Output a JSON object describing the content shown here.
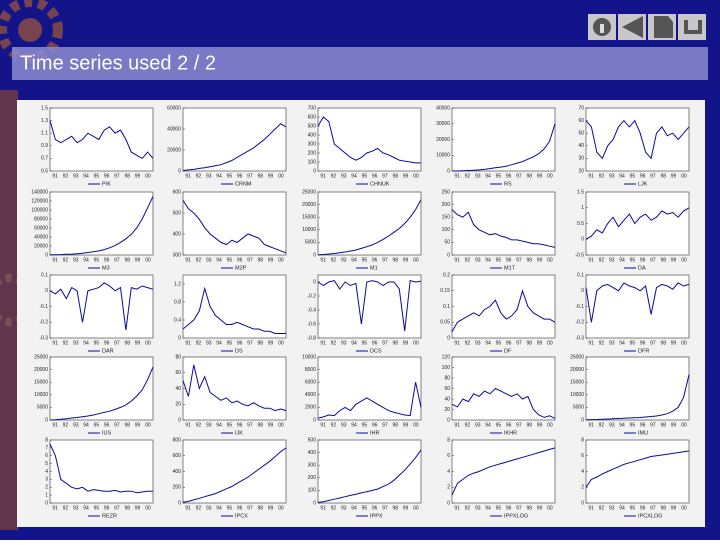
{
  "title": "Time series used 2 / 2",
  "chart_data": [
    {
      "type": "line",
      "legend": "PIK",
      "color": "#0a0aa0",
      "ylim": [
        0.5,
        1.5
      ],
      "yticks": [
        0.5,
        0.7,
        0.9,
        1.1,
        1.3,
        1.5
      ],
      "xticks": [
        "91",
        "92",
        "93",
        "94",
        "95",
        "96",
        "97",
        "98",
        "99",
        "00"
      ],
      "values": [
        1.3,
        1.0,
        0.95,
        1.0,
        1.05,
        0.95,
        1.0,
        1.1,
        1.05,
        1.0,
        1.15,
        1.2,
        1.1,
        1.15,
        1.0,
        0.8,
        0.75,
        0.7,
        0.8,
        0.7
      ]
    },
    {
      "type": "line",
      "legend": "CRNM",
      "color": "#0a0aa0",
      "ylim": [
        0,
        60000
      ],
      "yticks": [
        0,
        20000,
        40000,
        60000
      ],
      "xticks": [
        "91",
        "92",
        "93",
        "94",
        "95",
        "96",
        "97",
        "98",
        "99",
        "00"
      ],
      "values": [
        500,
        1000,
        1500,
        2500,
        3000,
        4000,
        5000,
        6000,
        8000,
        10000,
        13000,
        16000,
        19000,
        22000,
        26000,
        30000,
        35000,
        40000,
        45000,
        42000
      ]
    },
    {
      "type": "line",
      "legend": "CHNUK",
      "color": "#0a0aa0",
      "ylim": [
        0,
        700
      ],
      "yticks": [
        0,
        100,
        200,
        300,
        400,
        500,
        600,
        700
      ],
      "xticks": [
        "91",
        "92",
        "93",
        "94",
        "95",
        "96",
        "97",
        "98",
        "99",
        "00"
      ],
      "values": [
        500,
        600,
        550,
        300,
        250,
        200,
        150,
        120,
        150,
        200,
        220,
        250,
        200,
        180,
        150,
        120,
        110,
        100,
        90,
        90
      ]
    },
    {
      "type": "line",
      "legend": "RS",
      "color": "#0a0aa0",
      "ylim": [
        0,
        40000
      ],
      "yticks": [
        0,
        10000,
        20000,
        30000,
        40000
      ],
      "xticks": [
        "91",
        "92",
        "93",
        "94",
        "95",
        "96",
        "97",
        "98",
        "99",
        "00"
      ],
      "values": [
        0,
        0,
        100,
        300,
        500,
        700,
        1000,
        1500,
        2000,
        2500,
        3000,
        4000,
        5000,
        6000,
        7500,
        9000,
        11000,
        14000,
        19000,
        30000
      ]
    },
    {
      "type": "line",
      "legend": "LJK",
      "color": "#0a0aa0",
      "ylim": [
        20,
        70
      ],
      "yticks": [
        20,
        30,
        40,
        50,
        60,
        70
      ],
      "xticks": [
        "91",
        "92",
        "93",
        "94",
        "95",
        "96",
        "97",
        "98",
        "99",
        "00"
      ],
      "values": [
        60,
        55,
        35,
        30,
        40,
        45,
        55,
        60,
        55,
        60,
        50,
        35,
        30,
        50,
        55,
        48,
        50,
        45,
        50,
        55
      ]
    },
    {
      "type": "line",
      "legend": "M3",
      "color": "#0a0aa0",
      "ylim": [
        0,
        140000
      ],
      "yticks": [
        0,
        20000,
        40000,
        60000,
        80000,
        100000,
        120000,
        140000
      ],
      "xticks": [
        "91",
        "92",
        "93",
        "94",
        "95",
        "96",
        "97",
        "98",
        "99",
        "00"
      ],
      "values": [
        500,
        700,
        1000,
        1500,
        2000,
        3000,
        4000,
        5500,
        7000,
        9000,
        12000,
        16000,
        21000,
        28000,
        36000,
        46000,
        60000,
        80000,
        105000,
        130000
      ]
    },
    {
      "type": "line",
      "legend": "M2P",
      "color": "#0a0aa0",
      "ylim": [
        300,
        600
      ],
      "yticks": [
        300,
        400,
        500,
        600
      ],
      "xticks": [
        "91",
        "92",
        "93",
        "94",
        "95",
        "96",
        "97",
        "98",
        "99",
        "00"
      ],
      "values": [
        560,
        520,
        500,
        470,
        430,
        400,
        380,
        360,
        350,
        370,
        360,
        380,
        400,
        390,
        380,
        350,
        340,
        330,
        320,
        310
      ]
    },
    {
      "type": "line",
      "legend": "M1",
      "color": "#0a0aa0",
      "ylim": [
        0,
        25000
      ],
      "yticks": [
        0,
        5000,
        10000,
        15000,
        20000,
        25000
      ],
      "xticks": [
        "91",
        "92",
        "93",
        "94",
        "95",
        "96",
        "97",
        "98",
        "99",
        "00"
      ],
      "values": [
        100,
        200,
        400,
        600,
        900,
        1200,
        1600,
        2000,
        2600,
        3300,
        4000,
        5000,
        6200,
        7500,
        9000,
        10500,
        12500,
        15000,
        18000,
        22000
      ]
    },
    {
      "type": "line",
      "legend": "M1T",
      "color": "#0a0aa0",
      "ylim": [
        0,
        250
      ],
      "yticks": [
        0,
        50,
        100,
        150,
        200,
        250
      ],
      "xticks": [
        "91",
        "92",
        "93",
        "94",
        "95",
        "96",
        "97",
        "98",
        "99",
        "00"
      ],
      "values": [
        180,
        160,
        150,
        170,
        120,
        100,
        90,
        80,
        85,
        75,
        70,
        60,
        60,
        55,
        50,
        45,
        45,
        40,
        35,
        30
      ]
    },
    {
      "type": "line",
      "legend": "DA",
      "color": "#0a0aa0",
      "ylim": [
        -0.5,
        1.5
      ],
      "yticks": [
        -0.5,
        0,
        0.5,
        1,
        1.5
      ],
      "xticks": [
        "91",
        "92",
        "93",
        "94",
        "95",
        "96",
        "97",
        "98",
        "99",
        "00"
      ],
      "values": [
        0.0,
        0.1,
        0.3,
        0.2,
        0.5,
        0.7,
        0.4,
        0.6,
        0.8,
        0.5,
        0.7,
        0.8,
        0.6,
        0.7,
        0.9,
        0.8,
        0.85,
        0.7,
        0.9,
        1.0
      ]
    },
    {
      "type": "line",
      "legend": "DAR",
      "color": "#0a0aa0",
      "ylim": [
        -0.3,
        0.1
      ],
      "yticks": [
        -0.3,
        -0.2,
        -0.1,
        0,
        0.1
      ],
      "xticks": [
        "91",
        "92",
        "93",
        "94",
        "95",
        "96",
        "97",
        "98",
        "99",
        "00"
      ],
      "values": [
        0,
        -0.02,
        0.01,
        -0.05,
        0.02,
        0,
        -0.2,
        0,
        0.01,
        0.02,
        0.05,
        0.03,
        0,
        0.02,
        -0.25,
        0.02,
        0.01,
        0.03,
        0.02,
        0.01
      ]
    },
    {
      "type": "line",
      "legend": "DS",
      "color": "#0a0aa0",
      "ylim": [
        0,
        1.4
      ],
      "yticks": [
        0,
        0.4,
        0.8,
        1.2
      ],
      "xticks": [
        "91",
        "92",
        "93",
        "94",
        "95",
        "96",
        "97",
        "98",
        "99",
        "00"
      ],
      "values": [
        0.2,
        0.3,
        0.4,
        0.6,
        1.1,
        0.7,
        0.5,
        0.4,
        0.3,
        0.3,
        0.35,
        0.3,
        0.25,
        0.2,
        0.2,
        0.15,
        0.15,
        0.1,
        0.1,
        0.1
      ]
    },
    {
      "type": "line",
      "legend": "DCS",
      "color": "#0a0aa0",
      "ylim": [
        -0.8,
        0.1
      ],
      "yticks": [
        -0.8,
        -0.6,
        -0.4,
        -0.2,
        0
      ],
      "xticks": [
        "91",
        "92",
        "93",
        "94",
        "95",
        "96",
        "97",
        "98",
        "99",
        "00"
      ],
      "values": [
        0,
        -0.05,
        0,
        0.02,
        -0.1,
        0,
        -0.05,
        -0.02,
        -0.6,
        0,
        0.02,
        0,
        -0.05,
        0,
        0,
        -0.1,
        -0.7,
        0.02,
        0,
        0.01
      ]
    },
    {
      "type": "line",
      "legend": "DF",
      "color": "#0a0aa0",
      "ylim": [
        0,
        0.2
      ],
      "yticks": [
        0,
        0.05,
        0.1,
        0.15,
        0.2
      ],
      "xticks": [
        "91",
        "92",
        "93",
        "94",
        "95",
        "96",
        "97",
        "98",
        "99",
        "00"
      ],
      "values": [
        0.02,
        0.05,
        0.06,
        0.07,
        0.08,
        0.07,
        0.09,
        0.1,
        0.12,
        0.08,
        0.06,
        0.07,
        0.09,
        0.15,
        0.1,
        0.08,
        0.07,
        0.06,
        0.06,
        0.05
      ]
    },
    {
      "type": "line",
      "legend": "DFR",
      "color": "#0a0aa0",
      "ylim": [
        -0.3,
        0.1
      ],
      "yticks": [
        -0.3,
        -0.2,
        -0.1,
        0,
        0.1
      ],
      "xticks": [
        "91",
        "92",
        "93",
        "94",
        "95",
        "96",
        "97",
        "98",
        "99",
        "00"
      ],
      "values": [
        0.02,
        -0.2,
        0,
        0.03,
        0.04,
        0.02,
        0,
        0.05,
        0.03,
        0.02,
        0,
        0.03,
        -0.15,
        0.02,
        0.04,
        0.03,
        0.01,
        0.05,
        0.03,
        0.04
      ]
    },
    {
      "type": "line",
      "legend": "IUS",
      "color": "#0a0aa0",
      "ylim": [
        0,
        25000
      ],
      "yticks": [
        0,
        5000,
        10000,
        15000,
        20000,
        25000
      ],
      "xticks": [
        "91",
        "92",
        "93",
        "94",
        "95",
        "96",
        "97",
        "98",
        "99",
        "00"
      ],
      "values": [
        0,
        100,
        300,
        500,
        800,
        1000,
        1300,
        1600,
        2000,
        2500,
        3000,
        3500,
        4200,
        5000,
        6000,
        7500,
        9500,
        12000,
        16000,
        21000
      ]
    },
    {
      "type": "line",
      "legend": "IJK",
      "color": "#0a0aa0",
      "ylim": [
        0,
        80
      ],
      "yticks": [
        0,
        20,
        40,
        60,
        80
      ],
      "xticks": [
        "91",
        "92",
        "93",
        "94",
        "95",
        "96",
        "97",
        "98",
        "99",
        "00"
      ],
      "values": [
        50,
        30,
        70,
        40,
        55,
        35,
        30,
        25,
        28,
        22,
        24,
        20,
        18,
        22,
        18,
        15,
        15,
        12,
        14,
        12
      ]
    },
    {
      "type": "line",
      "legend": "IHR",
      "color": "#0a0aa0",
      "ylim": [
        0,
        10000
      ],
      "yticks": [
        0,
        2000,
        4000,
        6000,
        8000,
        10000
      ],
      "xticks": [
        "91",
        "92",
        "93",
        "94",
        "95",
        "96",
        "97",
        "98",
        "99",
        "00"
      ],
      "values": [
        300,
        500,
        800,
        700,
        1500,
        2000,
        1500,
        2500,
        3000,
        3500,
        3000,
        2500,
        2000,
        1500,
        1200,
        1000,
        800,
        700,
        6000,
        2000
      ]
    },
    {
      "type": "line",
      "legend": "IKHR",
      "color": "#0a0aa0",
      "ylim": [
        0,
        120
      ],
      "yticks": [
        0,
        20,
        40,
        60,
        80,
        100,
        120
      ],
      "xticks": [
        "91",
        "92",
        "93",
        "94",
        "95",
        "96",
        "97",
        "98",
        "99",
        "00"
      ],
      "values": [
        30,
        25,
        40,
        35,
        50,
        45,
        55,
        50,
        60,
        55,
        50,
        45,
        50,
        40,
        45,
        20,
        10,
        5,
        8,
        3
      ]
    },
    {
      "type": "line",
      "legend": "IMU",
      "color": "#0a0aa0",
      "ylim": [
        0,
        25000
      ],
      "yticks": [
        0,
        5000,
        10000,
        15000,
        20000,
        25000
      ],
      "xticks": [
        "91",
        "92",
        "93",
        "94",
        "95",
        "96",
        "97",
        "98",
        "99",
        "00"
      ],
      "values": [
        100,
        150,
        200,
        300,
        400,
        500,
        600,
        700,
        800,
        900,
        1000,
        1200,
        1400,
        1600,
        2000,
        2500,
        3500,
        5000,
        9000,
        18000
      ]
    },
    {
      "type": "line",
      "legend": "REZR",
      "color": "#0a0aa0",
      "ylim": [
        0,
        8
      ],
      "yticks": [
        0,
        1,
        2,
        3,
        4,
        5,
        6,
        7,
        8
      ],
      "xticks": [
        "91",
        "92",
        "93",
        "94",
        "95",
        "96",
        "97",
        "98",
        "99",
        "00"
      ],
      "values": [
        7.5,
        6,
        3,
        2.5,
        2,
        1.8,
        2,
        1.5,
        1.7,
        1.6,
        1.5,
        1.5,
        1.6,
        1.4,
        1.5,
        1.5,
        1.3,
        1.4,
        1.5,
        1.5
      ]
    },
    {
      "type": "line",
      "legend": "IPCX",
      "color": "#0a0aa0",
      "ylim": [
        0,
        800
      ],
      "yticks": [
        0,
        200,
        400,
        600,
        800
      ],
      "xticks": [
        "91",
        "92",
        "93",
        "94",
        "95",
        "96",
        "97",
        "98",
        "99",
        "00"
      ],
      "values": [
        10,
        20,
        40,
        60,
        80,
        100,
        120,
        150,
        180,
        210,
        250,
        290,
        330,
        380,
        430,
        480,
        530,
        590,
        650,
        700
      ]
    },
    {
      "type": "line",
      "legend": "IPPX",
      "color": "#0a0aa0",
      "ylim": [
        0,
        500
      ],
      "yticks": [
        0,
        100,
        200,
        300,
        400,
        500
      ],
      "xticks": [
        "91",
        "92",
        "93",
        "94",
        "95",
        "96",
        "97",
        "98",
        "99",
        "00"
      ],
      "values": [
        5,
        10,
        20,
        30,
        40,
        50,
        60,
        70,
        80,
        90,
        100,
        110,
        130,
        150,
        180,
        220,
        260,
        310,
        360,
        420
      ]
    },
    {
      "type": "line",
      "legend": "IPPXLOG",
      "color": "#0a0aa0",
      "ylim": [
        0,
        8
      ],
      "yticks": [
        0,
        2,
        4,
        6,
        8
      ],
      "xticks": [
        "91",
        "92",
        "93",
        "94",
        "95",
        "96",
        "97",
        "98",
        "99",
        "00"
      ],
      "values": [
        1,
        2.5,
        3,
        3.5,
        3.8,
        4,
        4.3,
        4.6,
        4.8,
        5,
        5.2,
        5.4,
        5.6,
        5.8,
        6,
        6.2,
        6.4,
        6.6,
        6.8,
        7
      ]
    },
    {
      "type": "line",
      "legend": "IPCXLOG",
      "color": "#0a0aa0",
      "ylim": [
        0,
        8
      ],
      "yticks": [
        0,
        2,
        4,
        6,
        8
      ],
      "xticks": [
        "91",
        "92",
        "93",
        "94",
        "95",
        "96",
        "97",
        "98",
        "99",
        "00"
      ],
      "values": [
        2,
        3,
        3.3,
        3.7,
        4,
        4.3,
        4.6,
        4.9,
        5.1,
        5.3,
        5.5,
        5.7,
        5.9,
        6.0,
        6.1,
        6.2,
        6.3,
        6.4,
        6.5,
        6.6
      ]
    }
  ]
}
